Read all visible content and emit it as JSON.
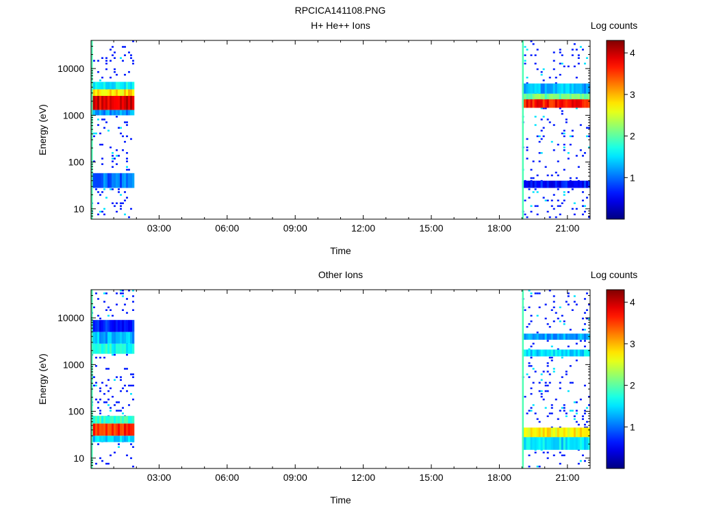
{
  "figure_title": "RPCICA141108.PNG",
  "chart_data": [
    {
      "type": "heatmap",
      "title": "H+ He++ Ions",
      "xlabel": "Time",
      "ylabel": "Energy (eV)",
      "x_ticks": [
        "03:00",
        "06:00",
        "09:00",
        "12:00",
        "15:00",
        "18:00",
        "21:00"
      ],
      "x_tick_hours": [
        3,
        6,
        9,
        12,
        15,
        18,
        21
      ],
      "xlim_hours": [
        0.0,
        22.0
      ],
      "y_scale": "log",
      "y_ticks": [
        "10",
        "100",
        "1000",
        "10000"
      ],
      "y_tick_values": [
        10,
        100,
        1000,
        10000
      ],
      "ylim": [
        6,
        40000
      ],
      "colorbar": {
        "label": "Log counts",
        "ticks": [
          "1",
          "2",
          "3",
          "4"
        ],
        "tick_values": [
          1,
          2,
          3,
          4
        ],
        "range": [
          0,
          4.3
        ]
      },
      "segments": [
        {
          "start_hours": 0.0,
          "end_hours": 1.9,
          "bands": [
            {
              "energy_low": 1300,
              "energy_high": 2600,
              "log_counts": 3.9
            },
            {
              "energy_low": 2600,
              "energy_high": 3600,
              "log_counts": 2.8
            },
            {
              "energy_low": 3600,
              "energy_high": 5200,
              "log_counts": 1.6
            },
            {
              "energy_low": 1000,
              "energy_high": 1300,
              "log_counts": 1.2
            },
            {
              "energy_low": 28,
              "energy_high": 58,
              "log_counts": 1.0
            }
          ]
        },
        {
          "start_hours": 19.0,
          "end_hours": 22.0,
          "bands": [
            {
              "energy_low": 1450,
              "energy_high": 2200,
              "log_counts": 3.7
            },
            {
              "energy_low": 2200,
              "energy_high": 2900,
              "log_counts": 2.1
            },
            {
              "energy_low": 2900,
              "energy_high": 4800,
              "log_counts": 1.3
            },
            {
              "energy_low": 28,
              "energy_high": 40,
              "log_counts": 0.6
            }
          ]
        }
      ]
    },
    {
      "type": "heatmap",
      "title": "Other Ions",
      "xlabel": "Time",
      "ylabel": "Energy (eV)",
      "x_ticks": [
        "03:00",
        "06:00",
        "09:00",
        "12:00",
        "15:00",
        "18:00",
        "21:00"
      ],
      "x_tick_hours": [
        3,
        6,
        9,
        12,
        15,
        18,
        21
      ],
      "xlim_hours": [
        0.0,
        22.0
      ],
      "y_scale": "log",
      "y_ticks": [
        "10",
        "100",
        "1000",
        "10000"
      ],
      "y_tick_values": [
        10,
        100,
        1000,
        10000
      ],
      "ylim": [
        6,
        40000
      ],
      "colorbar": {
        "label": "Log counts",
        "ticks": [
          "1",
          "2",
          "3",
          "4"
        ],
        "tick_values": [
          1,
          2,
          3,
          4
        ],
        "range": [
          0,
          4.3
        ]
      },
      "segments": [
        {
          "start_hours": 0.0,
          "end_hours": 1.9,
          "bands": [
            {
              "energy_low": 30,
              "energy_high": 55,
              "log_counts": 3.6
            },
            {
              "energy_low": 55,
              "energy_high": 80,
              "log_counts": 1.8
            },
            {
              "energy_low": 22,
              "energy_high": 30,
              "log_counts": 1.4
            },
            {
              "energy_low": 1700,
              "energy_high": 2800,
              "log_counts": 1.7
            },
            {
              "energy_low": 2800,
              "energy_high": 5000,
              "log_counts": 1.3
            },
            {
              "energy_low": 5000,
              "energy_high": 9000,
              "log_counts": 0.7
            }
          ]
        },
        {
          "start_hours": 19.0,
          "end_hours": 22.0,
          "bands": [
            {
              "energy_low": 28,
              "energy_high": 45,
              "log_counts": 2.7
            },
            {
              "energy_low": 15,
              "energy_high": 28,
              "log_counts": 1.5
            },
            {
              "energy_low": 1500,
              "energy_high": 2100,
              "log_counts": 1.5
            },
            {
              "energy_low": 3400,
              "energy_high": 4600,
              "log_counts": 1.2
            }
          ]
        }
      ]
    }
  ]
}
